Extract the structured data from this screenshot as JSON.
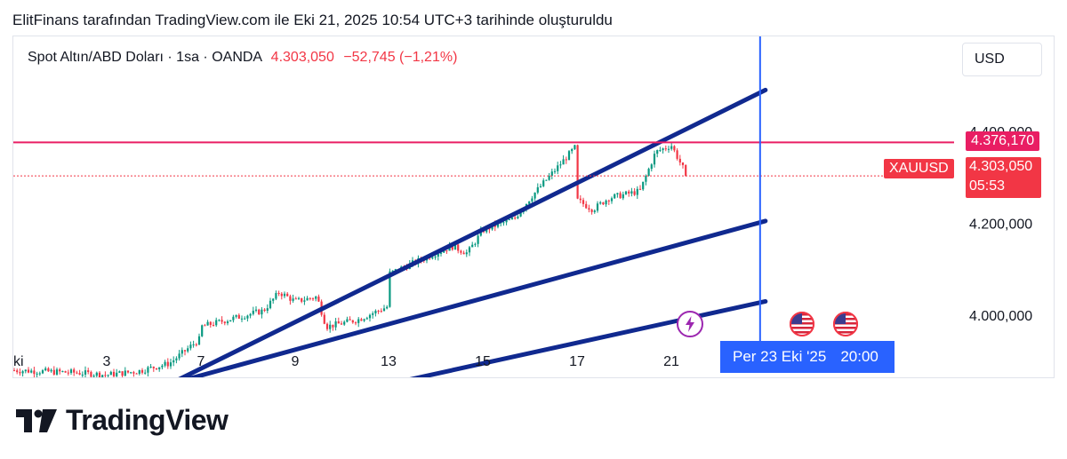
{
  "caption": "ElitFinans tarafından TradingView.com ile Eki 21, 2025 10:54 UTC+3 tarihinde oluşturuldu",
  "legend": {
    "symbol": "Spot Altın/ABD Doları · 1sa · OANDA",
    "price": "4.303,050",
    "change": "−52,745 (−1,21%)"
  },
  "currency_button": "USD",
  "price_axis": {
    "labels": [
      "4.400,000",
      "4.200,000",
      "4.000,000"
    ],
    "horizontal_line_label": "4.376,170",
    "symbol_tag": "XAUUSD",
    "current_price": "4.303,050",
    "countdown": "05:53"
  },
  "time_axis": {
    "labels": [
      "ki",
      "3",
      "7",
      "9",
      "13",
      "15",
      "17",
      "21"
    ],
    "crosshair_date": "Per 23 Eki '25",
    "crosshair_time": "20:00"
  },
  "events": [
    {
      "icon": "lightning-icon"
    },
    {
      "icon": "us-flag-icon"
    },
    {
      "icon": "us-flag-icon"
    }
  ],
  "footer": {
    "brand": "TradingView"
  },
  "colors": {
    "up": "#089981",
    "down": "#f23645",
    "trendline": "#10298f",
    "resistance": "#e91e63",
    "crosshair": "#2962ff"
  },
  "chart_data": {
    "type": "candlestick",
    "title": "Spot Altın/ABD Doları · 1sa · OANDA",
    "y_axis": {
      "range": [
        3820,
        4520
      ],
      "ticks": [
        4000,
        4200,
        4400
      ]
    },
    "x_axis": {
      "ticks": [
        "ki",
        "3",
        "7",
        "9",
        "13",
        "15",
        "17",
        "21"
      ]
    },
    "horizontal_line": 4376.17,
    "last_price": 4303.05,
    "trendlines": [
      {
        "x": [
          "5",
          "24"
        ],
        "y": [
          3850,
          4490
        ]
      },
      {
        "x": [
          "5",
          "24"
        ],
        "y": [
          3850,
          4205
        ]
      },
      {
        "x": [
          "12",
          "24"
        ],
        "y": [
          3850,
          4030
        ]
      }
    ],
    "close_path": [
      [
        "ki",
        3880
      ],
      [
        "2",
        3875
      ],
      [
        "3",
        3870
      ],
      [
        "4",
        3878
      ],
      [
        "5",
        3895
      ],
      [
        "6",
        3950
      ],
      [
        "7",
        3975
      ],
      [
        "8",
        4010
      ],
      [
        "8.5",
        4050
      ],
      [
        "9",
        4030
      ],
      [
        "9.7",
        4040
      ],
      [
        "10",
        3975
      ],
      [
        "11",
        3990
      ],
      [
        "12",
        4020
      ],
      [
        "13",
        4090
      ],
      [
        "14",
        4150
      ],
      [
        "14.5",
        4135
      ],
      [
        "15",
        4185
      ],
      [
        "16",
        4210
      ],
      [
        "16.5",
        4255
      ],
      [
        "17",
        4370
      ],
      [
        "17.5",
        4330
      ],
      [
        "18",
        4250
      ],
      [
        "18.5",
        4230
      ],
      [
        "19",
        4255
      ],
      [
        "20",
        4270
      ],
      [
        "20.5",
        4355
      ],
      [
        "21",
        4370
      ],
      [
        "21.5",
        4303
      ]
    ]
  }
}
